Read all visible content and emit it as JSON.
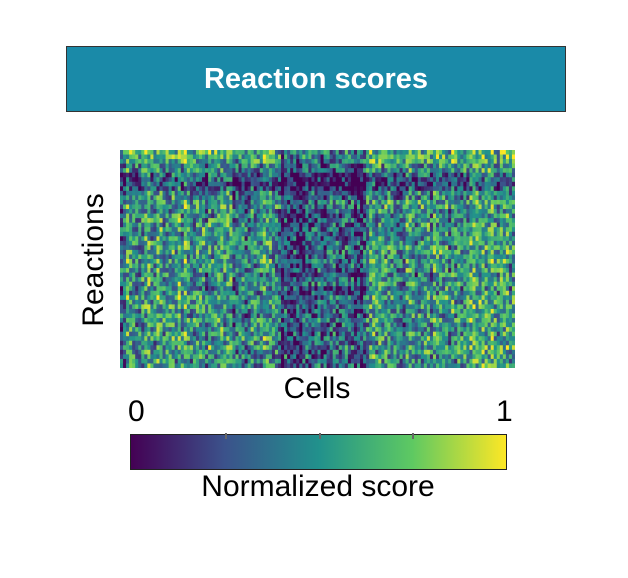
{
  "title": "Reaction scores",
  "chart_data": {
    "type": "heatmap",
    "xlabel": "Cells",
    "ylabel": "Reactions",
    "n_rows": 48,
    "n_cols": 130,
    "value_range": [
      0,
      1
    ],
    "seed": 7,
    "colormap": "viridis",
    "colormap_stops": [
      "#440154",
      "#3b528b",
      "#21918c",
      "#5ec962",
      "#fde725"
    ],
    "colorbar": {
      "label": "Normalized score",
      "min_label": "0",
      "max_label": "1",
      "ticks": [
        0,
        0.25,
        0.5,
        0.75,
        1
      ]
    }
  }
}
